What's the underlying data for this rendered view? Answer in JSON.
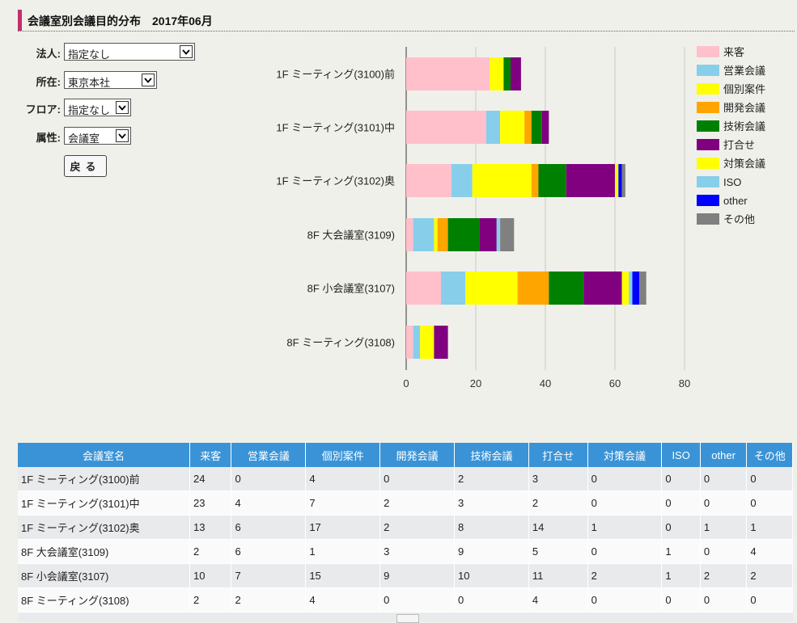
{
  "page": {
    "title": "会議室別会議目的分布　2017年06月"
  },
  "filters": [
    {
      "label": "法人:",
      "value": "指定なし"
    },
    {
      "label": "所在:",
      "value": "東京本社"
    },
    {
      "label": "フロア:",
      "value": "指定なし"
    },
    {
      "label": "属性:",
      "value": "会議室"
    }
  ],
  "back_button": {
    "label": "戻る"
  },
  "chart_data": {
    "type": "bar",
    "orientation": "horizontal",
    "stacked": true,
    "categories": [
      "1F ミーティング(3100)前",
      "1F ミーティング(3101)中",
      "1F ミーティング(3102)奥",
      "8F 大会議室(3109)",
      "8F 小会議室(3107)",
      "8F ミーティング(3108)"
    ],
    "series": [
      {
        "name": "来客",
        "color": "#ffc0cb",
        "values": [
          24,
          23,
          13,
          2,
          10,
          2
        ]
      },
      {
        "name": "営業会議",
        "color": "#87ceeb",
        "values": [
          0,
          4,
          6,
          6,
          7,
          2
        ]
      },
      {
        "name": "個別案件",
        "color": "#ffff00",
        "values": [
          4,
          7,
          17,
          1,
          15,
          4
        ]
      },
      {
        "name": "開発会議",
        "color": "#ffa500",
        "values": [
          0,
          2,
          2,
          3,
          9,
          0
        ]
      },
      {
        "name": "技術会議",
        "color": "#008000",
        "values": [
          2,
          3,
          8,
          9,
          10,
          0
        ]
      },
      {
        "name": "打合せ",
        "color": "#800080",
        "values": [
          3,
          2,
          14,
          5,
          11,
          4
        ]
      },
      {
        "name": "対策会議",
        "color": "#ffff00",
        "values": [
          0,
          0,
          1,
          0,
          2,
          0
        ]
      },
      {
        "name": "ISO",
        "color": "#87ceeb",
        "values": [
          0,
          0,
          0,
          1,
          1,
          0
        ]
      },
      {
        "name": "other",
        "color": "#0000ff",
        "values": [
          0,
          0,
          1,
          0,
          2,
          0
        ]
      },
      {
        "name": "その他",
        "color": "#808080",
        "values": [
          0,
          0,
          1,
          4,
          2,
          0
        ]
      }
    ],
    "xlim": [
      0,
      80
    ],
    "xticks": [
      0,
      20,
      40,
      60,
      80
    ],
    "grid": true,
    "legend": "right"
  },
  "table": {
    "headers": [
      "会議室名",
      "来客",
      "営業会議",
      "個別案件",
      "開発会議",
      "技術会議",
      "打合せ",
      "対策会議",
      "ISO",
      "other",
      "その他"
    ],
    "rows": [
      [
        "1F ミーティング(3100)前",
        "24",
        "0",
        "4",
        "0",
        "2",
        "3",
        "0",
        "0",
        "0",
        "0"
      ],
      [
        "1F ミーティング(3101)中",
        "23",
        "4",
        "7",
        "2",
        "3",
        "2",
        "0",
        "0",
        "0",
        "0"
      ],
      [
        "1F ミーティング(3102)奥",
        "13",
        "6",
        "17",
        "2",
        "8",
        "14",
        "1",
        "0",
        "1",
        "1"
      ],
      [
        "8F 大会議室(3109)",
        "2",
        "6",
        "1",
        "3",
        "9",
        "5",
        "0",
        "1",
        "0",
        "4"
      ],
      [
        "8F 小会議室(3107)",
        "10",
        "7",
        "15",
        "9",
        "10",
        "11",
        "2",
        "1",
        "2",
        "2"
      ],
      [
        "8F ミーティング(3108)",
        "2",
        "2",
        "4",
        "0",
        "0",
        "4",
        "0",
        "0",
        "0",
        "0"
      ]
    ]
  }
}
